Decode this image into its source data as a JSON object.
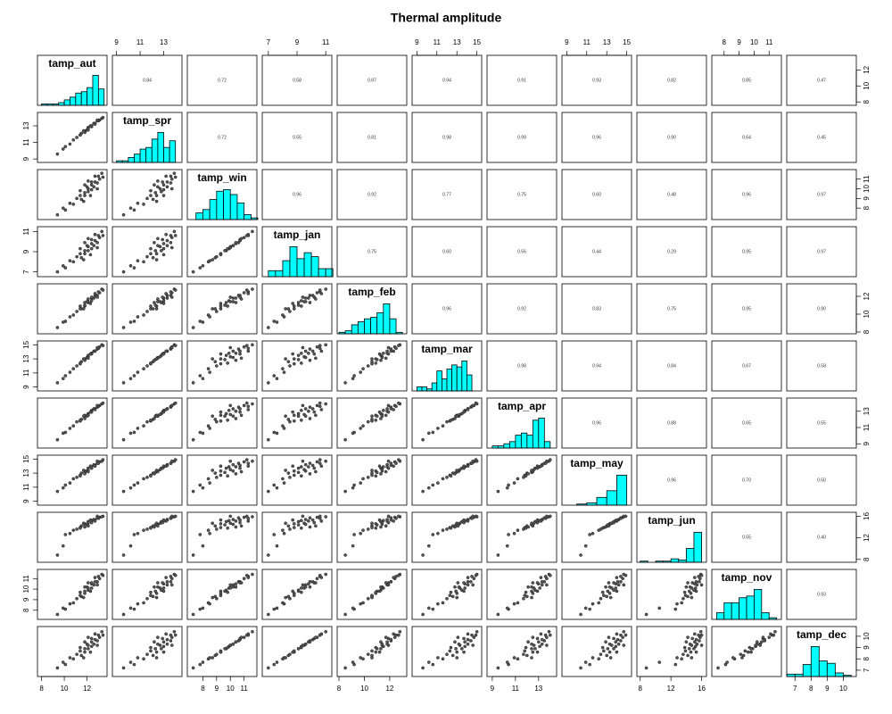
{
  "chart_data": {
    "type": "pairs",
    "title": "Thermal amplitude",
    "point_color": "#555555",
    "hist_color": "#00ffff",
    "variables": [
      {
        "name": "tamp_aut",
        "lim": [
          7.8,
          13.6
        ],
        "ticks": [
          8,
          10,
          12
        ],
        "values": [
          9.4,
          10.1,
          9.9,
          10.8,
          10.5,
          11.5,
          11.1,
          11.8,
          11.4,
          12.1,
          11.8,
          12.4,
          11.4,
          12.1,
          12.6,
          12.0,
          12.4,
          12.9,
          11.8,
          12.7,
          12.4,
          13.1,
          12.1,
          13.0,
          12.7,
          13.3,
          12.3,
          12.9,
          11.7,
          13.4
        ],
        "hist": {
          "bins": [
            8,
            8.5,
            9,
            9.5,
            10,
            10.5,
            11,
            11.5,
            12,
            12.5,
            13,
            13.5
          ],
          "counts": [
            1,
            1,
            1,
            2,
            4,
            6,
            9,
            10,
            13,
            22,
            12
          ]
        }
      },
      {
        "name": "tamp_spr",
        "lim": [
          8.8,
          14.4
        ],
        "ticks": [
          9,
          11,
          13
        ],
        "values": [
          9.6,
          10.5,
          10.2,
          11.3,
          10.8,
          12.1,
          11.6,
          12.4,
          11.9,
          12.8,
          12.3,
          13.0,
          11.9,
          12.7,
          13.3,
          12.5,
          13.0,
          13.6,
          12.2,
          13.3,
          12.9,
          13.7,
          12.5,
          13.6,
          13.2,
          13.9,
          13.0,
          13.7,
          12.4,
          14.0
        ],
        "hist": {
          "bins": [
            9,
            9.5,
            10,
            10.5,
            11,
            11.5,
            12,
            12.5,
            13,
            13.5,
            14
          ],
          "counts": [
            1,
            1,
            3,
            5,
            8,
            9,
            14,
            18,
            9,
            13
          ]
        }
      },
      {
        "name": "tamp_win",
        "lim": [
          7.0,
          11.8
        ],
        "ticks": [
          8,
          9,
          10,
          11
        ],
        "values": [
          7.3,
          7.8,
          8.0,
          8.4,
          8.5,
          8.9,
          9.0,
          9.3,
          9.3,
          9.7,
          9.6,
          9.9,
          9.8,
          10.0,
          10.2,
          10.2,
          10.4,
          10.6,
          10.4,
          10.7,
          10.7,
          11.0,
          10.8,
          11.3,
          11.3,
          11.6,
          9.3,
          10.0,
          8.7,
          11.2
        ],
        "hist": {
          "bins": [
            7,
            7.5,
            8,
            8.5,
            9,
            9.5,
            10,
            10.5,
            11,
            11.5,
            12
          ],
          "counts": [
            0,
            4,
            6,
            12,
            17,
            18,
            15,
            10,
            3,
            1
          ]
        }
      },
      {
        "name": "tamp_jan",
        "lim": [
          6.7,
          11.3
        ],
        "ticks": [
          7,
          9,
          11
        ],
        "values": [
          7.0,
          7.4,
          7.6,
          8.0,
          8.1,
          8.4,
          8.5,
          8.8,
          8.8,
          9.1,
          9.1,
          9.3,
          9.3,
          9.5,
          9.6,
          9.6,
          9.8,
          9.9,
          9.9,
          10.1,
          10.2,
          10.4,
          10.3,
          10.6,
          10.7,
          11.0,
          8.7,
          9.4,
          8.2,
          10.6
        ],
        "hist": {
          "bins": [
            7,
            7.5,
            8,
            8.5,
            9,
            9.5,
            10,
            10.5,
            11,
            11.5
          ],
          "counts": [
            3,
            3,
            8,
            15,
            9,
            12,
            10,
            4,
            4
          ]
        }
      },
      {
        "name": "tamp_feb",
        "lim": [
          8.0,
          13.2
        ],
        "ticks": [
          8,
          10,
          12
        ],
        "values": [
          8.5,
          9.2,
          9.1,
          9.9,
          9.7,
          10.6,
          10.3,
          10.9,
          10.6,
          11.3,
          11.0,
          11.5,
          10.9,
          11.4,
          11.8,
          11.4,
          11.8,
          12.1,
          11.3,
          12.1,
          11.9,
          12.4,
          11.7,
          12.5,
          12.3,
          12.8,
          11.2,
          11.9,
          10.6,
          12.7
        ],
        "hist": {
          "bins": [
            8,
            8.5,
            9,
            9.5,
            10,
            10.5,
            11,
            11.5,
            12,
            12.5,
            13
          ],
          "counts": [
            1,
            2,
            6,
            8,
            10,
            11,
            14,
            20,
            10,
            1
          ]
        }
      },
      {
        "name": "tamp_mar",
        "lim": [
          8.7,
          15.3
        ],
        "ticks": [
          9,
          11,
          13,
          15
        ],
        "values": [
          9.6,
          10.6,
          10.2,
          11.6,
          11.1,
          12.6,
          12.0,
          13.0,
          12.3,
          13.5,
          12.9,
          13.8,
          12.4,
          13.3,
          14.1,
          13.2,
          13.8,
          14.4,
          12.8,
          14.1,
          13.7,
          14.7,
          13.1,
          14.5,
          14.1,
          15.0,
          13.7,
          14.6,
          13.0,
          14.9
        ],
        "hist": {
          "bins": [
            9,
            9.5,
            10,
            10.5,
            11,
            11.5,
            12,
            12.5,
            13,
            13.5,
            14,
            14.5,
            15
          ],
          "counts": [
            2,
            2,
            1,
            4,
            10,
            6,
            11,
            13,
            12,
            15,
            8,
            0
          ]
        }
      },
      {
        "name": "tamp_apr",
        "lim": [
          8.7,
          14.4
        ],
        "ticks": [
          9,
          11,
          13
        ],
        "values": [
          9.5,
          10.4,
          10.3,
          11.2,
          10.9,
          12.0,
          11.7,
          12.5,
          11.8,
          12.7,
          12.4,
          13.1,
          11.9,
          12.6,
          13.3,
          12.4,
          13.0,
          13.5,
          12.1,
          13.3,
          12.9,
          13.7,
          12.5,
          13.6,
          13.2,
          13.9,
          12.9,
          13.7,
          12.4,
          14.0
        ],
        "hist": {
          "bins": [
            9,
            9.5,
            10,
            10.5,
            11,
            11.5,
            12,
            12.5,
            13,
            13.5,
            14
          ],
          "counts": [
            1,
            1,
            2,
            3,
            6,
            7,
            6,
            13,
            14,
            3
          ]
        }
      },
      {
        "name": "tamp_may",
        "lim": [
          8.7,
          15.3
        ],
        "ticks": [
          9,
          11,
          13,
          15
        ],
        "values": [
          10.4,
          11.3,
          10.9,
          12.2,
          11.6,
          13.0,
          12.4,
          13.3,
          12.7,
          13.7,
          13.1,
          13.9,
          12.6,
          13.5,
          14.2,
          13.3,
          13.9,
          14.4,
          12.9,
          14.1,
          13.7,
          14.6,
          13.2,
          14.4,
          14.0,
          14.7,
          14.0,
          14.7,
          13.4,
          14.9
        ],
        "hist": {
          "bins": [
            10,
            11,
            12,
            13,
            14,
            15
          ],
          "counts": [
            1,
            2,
            7,
            13,
            27
          ]
        }
      },
      {
        "name": "tamp_jun",
        "lim": [
          7.8,
          16.4
        ],
        "ticks": [
          8,
          12,
          16
        ],
        "values": [
          8.8,
          12.6,
          10.5,
          13.4,
          12.8,
          14.2,
          13.6,
          14.6,
          13.9,
          15.0,
          14.4,
          15.2,
          13.8,
          14.7,
          15.4,
          14.5,
          15.1,
          15.7,
          14.0,
          15.3,
          14.8,
          15.8,
          14.2,
          15.6,
          15.1,
          15.9,
          15.3,
          16.0,
          14.7,
          16.0
        ],
        "hist": {
          "bins": [
            8,
            9,
            10,
            11,
            12,
            13,
            14,
            15,
            16
          ],
          "counts": [
            1,
            0,
            1,
            1,
            3,
            2,
            12,
            26
          ]
        }
      },
      {
        "name": "tamp_nov",
        "lim": [
          7.3,
          11.7
        ],
        "ticks": [
          8,
          9,
          10,
          11
        ],
        "values": [
          7.6,
          8.1,
          8.2,
          8.7,
          8.6,
          9.3,
          9.1,
          9.6,
          9.4,
          9.9,
          9.8,
          10.1,
          9.7,
          10.1,
          10.4,
          10.2,
          10.5,
          10.7,
          10.2,
          10.7,
          10.6,
          11.0,
          10.6,
          11.2,
          11.1,
          11.4,
          9.8,
          10.4,
          9.2,
          11.3
        ],
        "hist": {
          "bins": [
            7.5,
            8,
            8.5,
            9,
            9.5,
            10,
            10.5,
            11,
            11.5
          ],
          "counts": [
            4,
            10,
            10,
            13,
            14,
            18,
            4,
            1
          ]
        }
      },
      {
        "name": "tamp_dec",
        "lim": [
          6.6,
          10.7
        ],
        "ticks": [
          7,
          8,
          9,
          10
        ],
        "values": [
          7.2,
          7.5,
          7.7,
          8.0,
          8.1,
          8.3,
          8.4,
          8.6,
          8.7,
          8.9,
          8.9,
          9.1,
          9.0,
          9.2,
          9.3,
          9.3,
          9.5,
          9.6,
          9.5,
          9.7,
          9.8,
          9.9,
          9.9,
          10.1,
          10.2,
          10.4,
          8.6,
          9.2,
          8.1,
          10.1
        ],
        "hist": {
          "bins": [
            6.5,
            7,
            7.5,
            8,
            8.5,
            9,
            9.5,
            10,
            10.5
          ],
          "counts": [
            2,
            2,
            10,
            25,
            13,
            11,
            3,
            1
          ]
        }
      }
    ],
    "correlations": [
      [
        "0.84",
        "0.72",
        "0.58",
        "0.87",
        "0.94",
        "0.91",
        "0.93",
        "0.82",
        "0.85",
        "0.47"
      ],
      [
        "0.72",
        "0.55",
        "0.81",
        "0.98",
        "0.99",
        "0.96",
        "0.90",
        "0.64",
        "0.45"
      ],
      [
        "0.96",
        "0.92",
        "0.77",
        "0.75",
        "0.60",
        "0.48",
        "0.96",
        "0.97"
      ],
      [
        "0.75",
        "0.60",
        "0.56",
        "0.44",
        "0.29",
        "0.95",
        "0.97"
      ],
      [
        "0.96",
        "0.92",
        "0.83",
        "0.75",
        "0.95",
        "0.90"
      ],
      [
        "0.98",
        "0.94",
        "0.84",
        "0.67",
        "0.58"
      ],
      [
        "0.96",
        "0.88",
        "0.65",
        "0.55"
      ],
      [
        "0.96",
        "0.70",
        "0.50"
      ],
      [
        "0.55",
        "0.40"
      ],
      [
        "0.93"
      ]
    ]
  }
}
